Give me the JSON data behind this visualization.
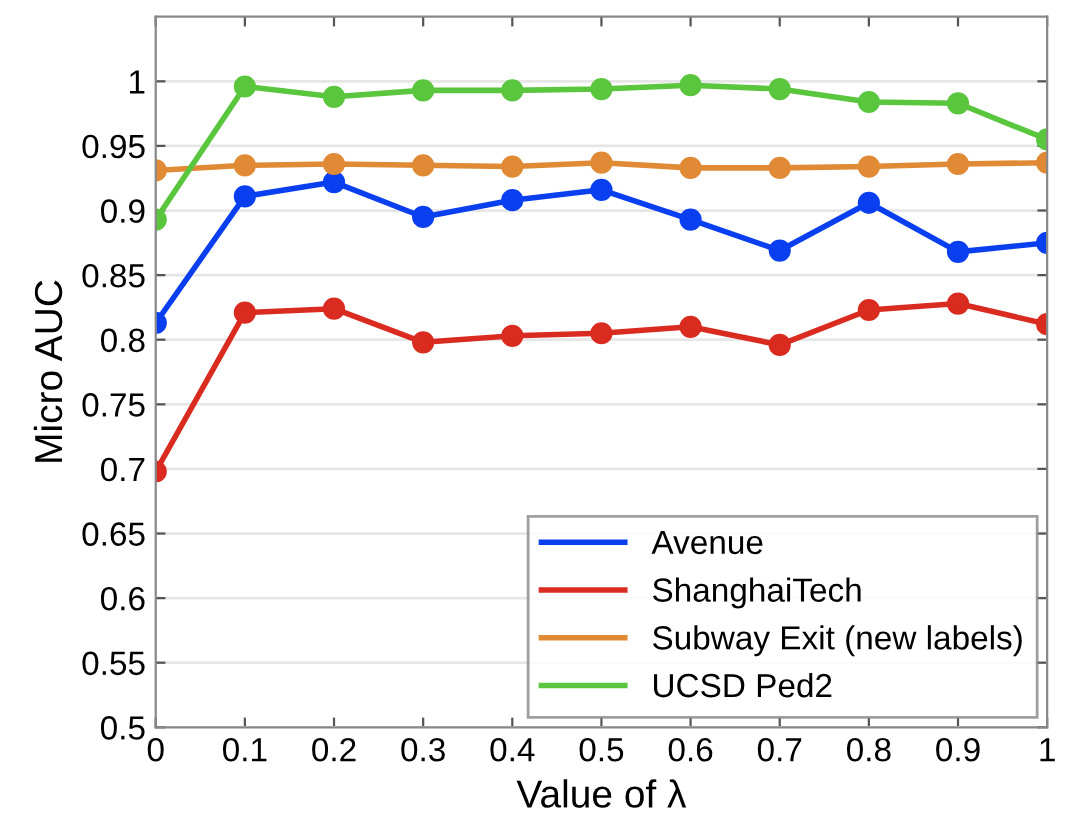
{
  "chart_data": {
    "type": "line",
    "xlabel": "Value of λ",
    "ylabel": "Micro AUC",
    "x": [
      0,
      0.1,
      0.2,
      0.3,
      0.4,
      0.5,
      0.6,
      0.7,
      0.8,
      0.9,
      1
    ],
    "series": [
      {
        "name": "Avenue",
        "color": "#0a3ff0",
        "values": [
          0.813,
          0.911,
          0.922,
          0.895,
          0.908,
          0.916,
          0.893,
          0.869,
          0.906,
          0.868,
          0.875
        ]
      },
      {
        "name": "ShanghaiTech",
        "color": "#d92b1f",
        "values": [
          0.698,
          0.821,
          0.824,
          0.798,
          0.803,
          0.805,
          0.81,
          0.796,
          0.823,
          0.828,
          0.812
        ]
      },
      {
        "name": "Subway Exit (new labels)",
        "color": "#e08a35",
        "values": [
          0.931,
          0.935,
          0.936,
          0.935,
          0.934,
          0.937,
          0.933,
          0.933,
          0.934,
          0.936,
          0.937
        ]
      },
      {
        "name": "UCSD Ped2",
        "color": "#5ac63e",
        "values": [
          0.893,
          0.996,
          0.988,
          0.993,
          0.993,
          0.994,
          0.997,
          0.994,
          0.984,
          0.983,
          0.955
        ]
      }
    ],
    "xlim": [
      0,
      1
    ],
    "ylim": [
      0.5,
      1.05
    ],
    "xticks": [
      0,
      0.1,
      0.2,
      0.3,
      0.4,
      0.5,
      0.6,
      0.7,
      0.8,
      0.9,
      1
    ],
    "yticks": [
      0.5,
      0.55,
      0.6,
      0.65,
      0.7,
      0.75,
      0.8,
      0.85,
      0.9,
      0.95,
      1
    ],
    "grid": "y",
    "legend": "bottom right",
    "marker": "circle",
    "line_style": "solid"
  }
}
